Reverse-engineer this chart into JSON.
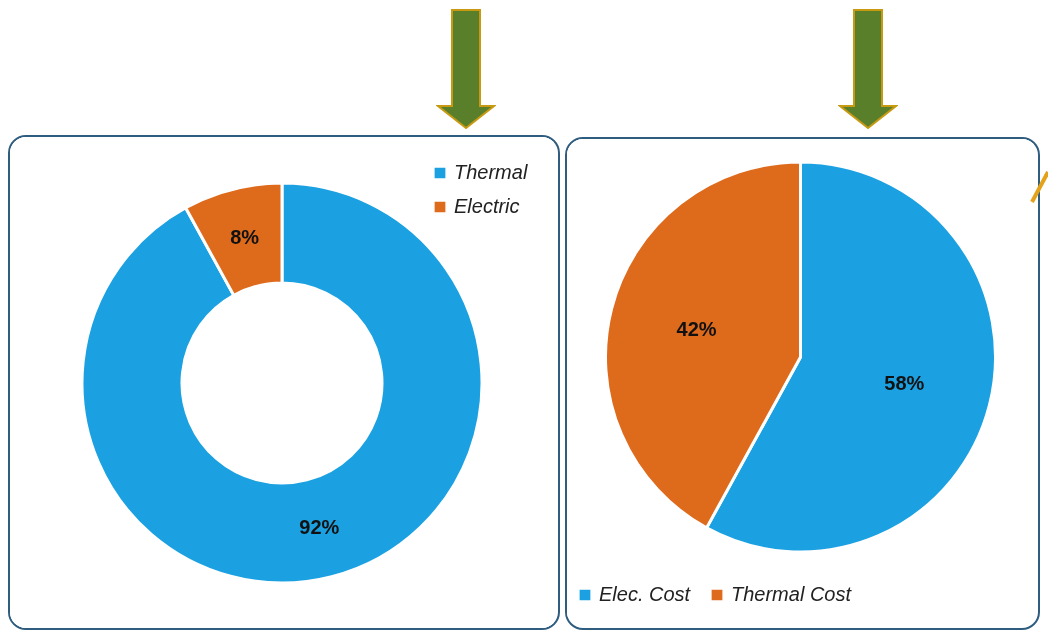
{
  "chart_data": [
    {
      "type": "donut",
      "categories": [
        "Thermal",
        "Electric"
      ],
      "values": [
        92,
        8
      ],
      "colors": [
        "#1ba1e2",
        "#de6a1c"
      ],
      "value_labels": [
        "92%",
        "8%"
      ],
      "legend": "top right"
    },
    {
      "type": "pie",
      "categories": [
        "Elec. Cost",
        "Thermal Cost"
      ],
      "values": [
        58,
        42
      ],
      "colors": [
        "#1ba1e2",
        "#de6a1c"
      ],
      "value_labels": [
        "58%",
        "42%"
      ],
      "legend": "bottom"
    }
  ]
}
